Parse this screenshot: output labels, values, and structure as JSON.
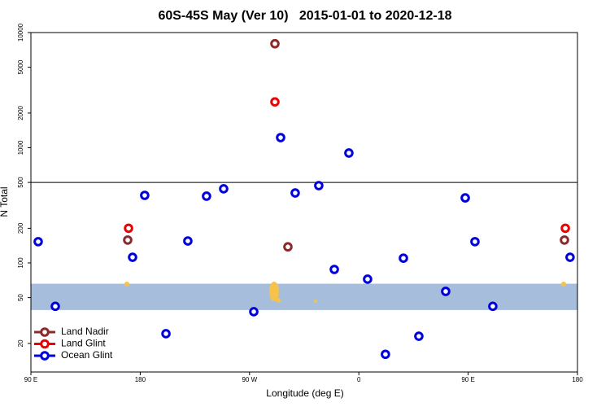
{
  "chart_data": {
    "type": "scatter",
    "title": "60S-45S May (Ver 10)   2015-01-01 to 2020-12-18",
    "x_label": "Longitude (deg E)",
    "y_label": "N Total",
    "y_log": true,
    "xlim": [
      90,
      540
    ],
    "ylim": [
      11.3,
      10000
    ],
    "xticks": [
      {
        "value": 90,
        "label": "90 E"
      },
      180,
      {
        "value": 270,
        "label": "90 W"
      },
      {
        "value": 360,
        "label": "0"
      },
      {
        "value": 450,
        "label": "90 E"
      },
      {
        "value": 540,
        "label": "180"
      }
    ],
    "yticks": [
      20,
      50,
      100,
      200,
      500,
      1000,
      2000,
      5000,
      10000
    ],
    "reference_line": 500,
    "shaded_band": [
      39,
      66
    ],
    "band_color": "#a6bddb",
    "legend_position": "bottom-left",
    "series": [
      {
        "name": "Land Nadir",
        "color": "#8b2a2a",
        "x": [
          290.9,
          169.7,
          301.6,
          529.3
        ],
        "values": [
          8000,
          158,
          138,
          158
        ]
      },
      {
        "name": "Land Glint",
        "color": "#ee0000",
        "x": [
          290.9,
          170.4,
          530
        ],
        "values": [
          2500,
          200,
          200
        ]
      },
      {
        "name": "Ocean Glint",
        "color": "#0000dd",
        "x": [
          96,
          110.1,
          173.7,
          183.7,
          201.2,
          219.2,
          234.6,
          248.7,
          273.5,
          295.6,
          307.6,
          327,
          339.8,
          351.8,
          367.2,
          381.9,
          396.7,
          409.4,
          431.5,
          447.6,
          455.6,
          470.3,
          533.9
        ],
        "values": [
          153,
          42,
          112,
          386,
          24.3,
          155,
          380,
          440,
          37.7,
          1225,
          405,
          469,
          87.8,
          900,
          72.3,
          16.1,
          110,
          23.1,
          56.6,
          367,
          153,
          42,
          112
        ]
      }
    ]
  }
}
